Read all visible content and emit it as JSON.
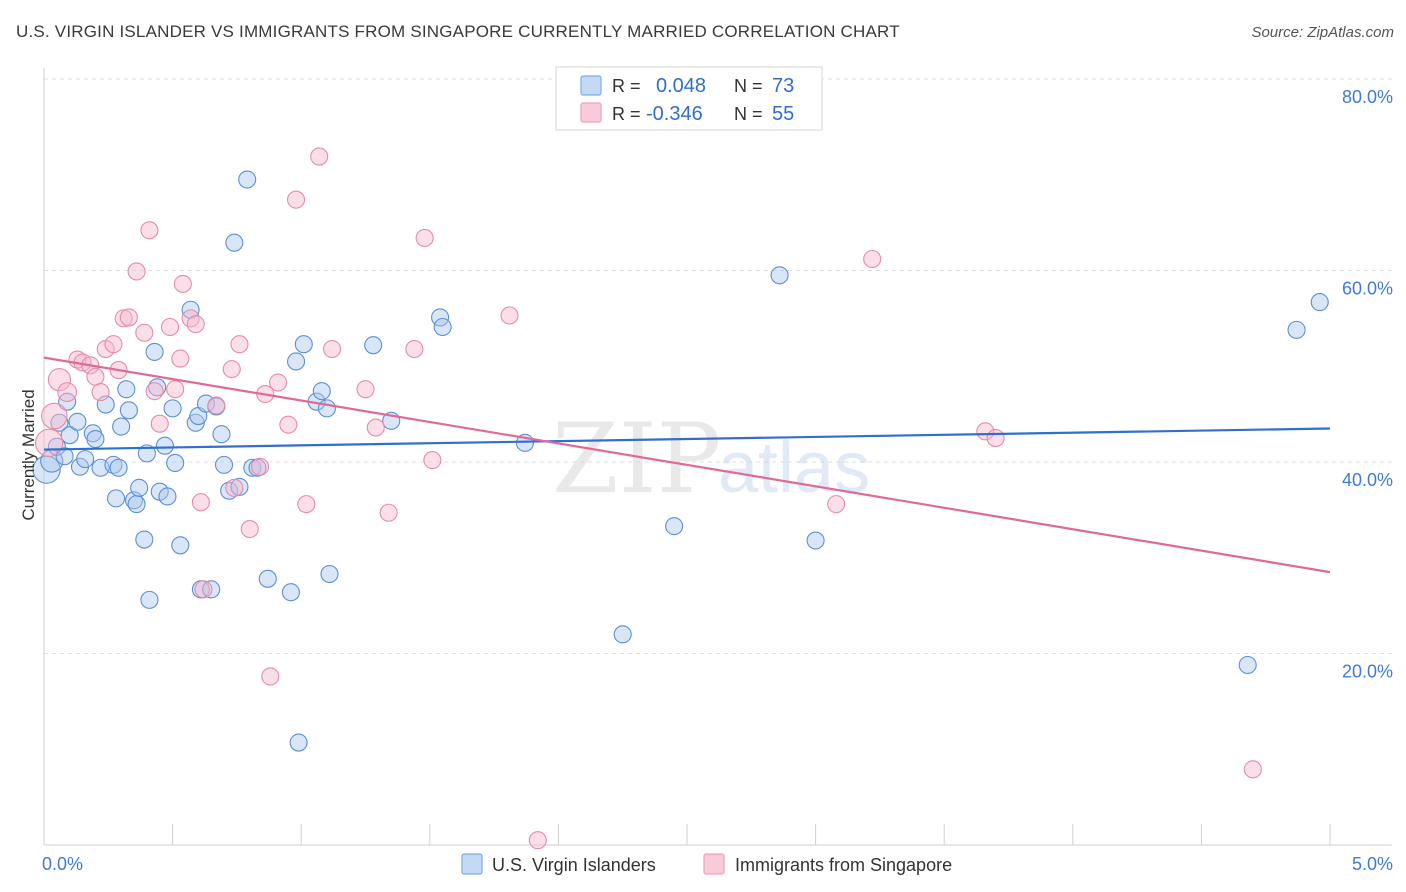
{
  "header": {
    "title": "U.S. VIRGIN ISLANDER VS IMMIGRANTS FROM SINGAPORE CURRENTLY MARRIED CORRELATION CHART",
    "source": "Source: ZipAtlas.com"
  },
  "watermark": {
    "part1": "ZIP",
    "part2": "atlas"
  },
  "legend": {
    "rows": [
      {
        "r_label": "R =",
        "r_value": "0.048",
        "n_label": "N =",
        "n_value": "73",
        "color": "#7aaeea"
      },
      {
        "r_label": "R =",
        "r_value": "-0.346",
        "n_label": "N =",
        "n_value": "55",
        "color": "#f0a0bb"
      }
    ]
  },
  "bottom_legend": [
    {
      "label": "U.S. Virgin Islanders",
      "color": "#7aaeea"
    },
    {
      "label": "Immigrants from Singapore",
      "color": "#f0a0bb"
    }
  ],
  "chart_data": {
    "type": "scatter",
    "title": "U.S. VIRGIN ISLANDER VS IMMIGRANTS FROM SINGAPORE CURRENTLY MARRIED CORRELATION CHART",
    "xlabel": "",
    "ylabel": "Currently Married",
    "xlim": [
      0,
      5
    ],
    "ylim": [
      0,
      80
    ],
    "x_ticks": [
      "0.0%",
      "5.0%"
    ],
    "y_ticks": [
      {
        "value": 20,
        "label": "20.0%"
      },
      {
        "value": 40,
        "label": "40.0%"
      },
      {
        "value": 60,
        "label": "60.0%"
      },
      {
        "value": 80,
        "label": "80.0%"
      }
    ],
    "grid": true,
    "legend_position": "top-center",
    "series": [
      {
        "name": "U.S. Virgin Islanders",
        "color": "#7aaeea",
        "stroke": "#5b8fd6",
        "trend": {
          "x": [
            0,
            5
          ],
          "y": [
            41.3,
            43.5
          ],
          "color": "#2f6fcf"
        },
        "points": [
          [
            0.01,
            39.2,
            1.6
          ],
          [
            0.03,
            40.1,
            1.3
          ],
          [
            0.05,
            41.6,
            1.0
          ],
          [
            0.08,
            40.6,
            1.0
          ],
          [
            0.06,
            44.1,
            1.0
          ],
          [
            0.09,
            46.3,
            1.0
          ],
          [
            0.1,
            42.8,
            1.0
          ],
          [
            0.13,
            44.2,
            1.0
          ],
          [
            0.14,
            39.5,
            1.0
          ],
          [
            0.16,
            40.3,
            1.0
          ],
          [
            0.19,
            43.0,
            1.0
          ],
          [
            0.2,
            42.4,
            1.0
          ],
          [
            0.22,
            39.4,
            1.0
          ],
          [
            0.24,
            46.0,
            1.0
          ],
          [
            0.27,
            39.7,
            1.0
          ],
          [
            0.28,
            36.2,
            1.0
          ],
          [
            0.29,
            39.4,
            1.0
          ],
          [
            0.3,
            43.7,
            1.0
          ],
          [
            0.32,
            47.6,
            1.0
          ],
          [
            0.33,
            45.4,
            1.0
          ],
          [
            0.35,
            36.0,
            1.0
          ],
          [
            0.36,
            35.6,
            1.0
          ],
          [
            0.37,
            37.3,
            1.0
          ],
          [
            0.39,
            31.9,
            1.0
          ],
          [
            0.4,
            40.9,
            1.0
          ],
          [
            0.41,
            25.6,
            1.0
          ],
          [
            0.43,
            51.5,
            1.0
          ],
          [
            0.44,
            47.8,
            1.0
          ],
          [
            0.45,
            36.9,
            1.0
          ],
          [
            0.47,
            41.7,
            1.0
          ],
          [
            0.48,
            36.4,
            1.0
          ],
          [
            0.5,
            45.6,
            1.0
          ],
          [
            0.51,
            39.9,
            1.0
          ],
          [
            0.53,
            31.3,
            1.0
          ],
          [
            0.57,
            55.9,
            1.0
          ],
          [
            0.59,
            44.1,
            1.0
          ],
          [
            0.6,
            44.8,
            1.0
          ],
          [
            0.61,
            26.7,
            1.0
          ],
          [
            0.63,
            46.1,
            1.0
          ],
          [
            0.65,
            26.7,
            1.0
          ],
          [
            0.67,
            45.8,
            1.0
          ],
          [
            0.69,
            42.9,
            1.0
          ],
          [
            0.7,
            39.7,
            1.0
          ],
          [
            0.72,
            37.0,
            1.0
          ],
          [
            0.74,
            62.9,
            1.0
          ],
          [
            0.76,
            37.4,
            1.0
          ],
          [
            0.79,
            69.5,
            1.0
          ],
          [
            0.81,
            39.4,
            1.0
          ],
          [
            0.83,
            39.4,
            1.0
          ],
          [
            0.87,
            27.8,
            1.0
          ],
          [
            0.96,
            26.4,
            1.0
          ],
          [
            0.98,
            50.5,
            1.0
          ],
          [
            0.99,
            10.7,
            1.0
          ],
          [
            1.01,
            52.3,
            1.0
          ],
          [
            1.06,
            46.3,
            1.0
          ],
          [
            1.08,
            47.4,
            1.0
          ],
          [
            1.1,
            45.6,
            1.0
          ],
          [
            1.11,
            28.3,
            1.0
          ],
          [
            1.28,
            52.2,
            1.0
          ],
          [
            1.35,
            44.3,
            1.0
          ],
          [
            1.54,
            55.1,
            1.0
          ],
          [
            1.55,
            54.1,
            1.0
          ],
          [
            1.87,
            42.0,
            1.0
          ],
          [
            2.25,
            22.0,
            1.0
          ],
          [
            2.45,
            33.3,
            1.0
          ],
          [
            2.86,
            59.5,
            1.0
          ],
          [
            3.0,
            31.8,
            1.0
          ],
          [
            4.68,
            18.8,
            1.0
          ],
          [
            4.87,
            53.8,
            1.0
          ],
          [
            4.96,
            56.7,
            1.0
          ]
        ]
      },
      {
        "name": "Immigrants from Singapore",
        "color": "#f0a0bb",
        "stroke": "#e88aa8",
        "trend": {
          "x": [
            0,
            5
          ],
          "y": [
            50.9,
            28.5
          ],
          "color": "#e06a95"
        },
        "points": [
          [
            0.02,
            42.0,
            1.6
          ],
          [
            0.04,
            44.8,
            1.5
          ],
          [
            0.06,
            48.6,
            1.3
          ],
          [
            0.09,
            47.3,
            1.1
          ],
          [
            0.13,
            50.7,
            1.0
          ],
          [
            0.15,
            50.4,
            1.0
          ],
          [
            0.18,
            50.1,
            1.0
          ],
          [
            0.2,
            48.9,
            1.0
          ],
          [
            0.22,
            47.3,
            1.0
          ],
          [
            0.24,
            51.8,
            1.0
          ],
          [
            0.27,
            52.3,
            1.0
          ],
          [
            0.29,
            49.6,
            1.0
          ],
          [
            0.31,
            55.0,
            1.0
          ],
          [
            0.33,
            55.1,
            1.0
          ],
          [
            0.36,
            59.9,
            1.0
          ],
          [
            0.39,
            53.5,
            1.0
          ],
          [
            0.41,
            64.2,
            1.0
          ],
          [
            0.43,
            47.4,
            1.0
          ],
          [
            0.45,
            44.0,
            1.0
          ],
          [
            0.49,
            54.1,
            1.0
          ],
          [
            0.51,
            47.6,
            1.0
          ],
          [
            0.53,
            50.8,
            1.0
          ],
          [
            0.54,
            58.6,
            1.0
          ],
          [
            0.57,
            55.0,
            1.0
          ],
          [
            0.59,
            54.4,
            1.0
          ],
          [
            0.61,
            35.8,
            1.0
          ],
          [
            0.62,
            26.7,
            1.0
          ],
          [
            0.67,
            45.9,
            1.0
          ],
          [
            0.73,
            49.7,
            1.0
          ],
          [
            0.74,
            37.3,
            1.0
          ],
          [
            0.76,
            52.3,
            1.0
          ],
          [
            0.8,
            33.0,
            1.0
          ],
          [
            0.84,
            39.5,
            1.0
          ],
          [
            0.86,
            47.1,
            1.0
          ],
          [
            0.88,
            17.6,
            1.0
          ],
          [
            0.91,
            48.3,
            1.0
          ],
          [
            0.95,
            43.9,
            1.0
          ],
          [
            0.98,
            67.4,
            1.0
          ],
          [
            1.02,
            35.6,
            1.0
          ],
          [
            1.07,
            71.9,
            1.0
          ],
          [
            1.12,
            51.8,
            1.0
          ],
          [
            1.25,
            47.6,
            1.0
          ],
          [
            1.29,
            43.6,
            1.0
          ],
          [
            1.34,
            34.7,
            1.0
          ],
          [
            1.44,
            51.8,
            1.0
          ],
          [
            1.48,
            63.4,
            1.0
          ],
          [
            1.51,
            40.2,
            1.0
          ],
          [
            1.81,
            55.3,
            1.0
          ],
          [
            1.92,
            0.5,
            1.0
          ],
          [
            3.08,
            35.6,
            1.0
          ],
          [
            3.22,
            61.2,
            1.0
          ],
          [
            3.66,
            43.2,
            1.0
          ],
          [
            3.7,
            42.5,
            1.0
          ],
          [
            4.7,
            7.9,
            1.0
          ]
        ]
      }
    ]
  }
}
